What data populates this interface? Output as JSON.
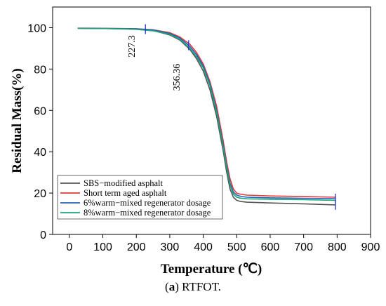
{
  "chart_data": {
    "type": "line",
    "title": "",
    "xlabel": "Temperature (℃)",
    "ylabel": "Residual Mass(%)",
    "xlim": [
      -50,
      900
    ],
    "ylim": [
      0,
      110
    ],
    "xticks": [
      0,
      100,
      200,
      300,
      400,
      500,
      600,
      700,
      800,
      900
    ],
    "yticks": [
      0,
      20,
      40,
      60,
      80,
      100
    ],
    "grid": false,
    "legend": "bottom-left",
    "series": [
      {
        "name": "SBS−modified asphalt",
        "color": "#555555",
        "x": [
          25,
          100,
          200,
          250,
          300,
          330,
          360,
          380,
          400,
          420,
          440,
          460,
          470,
          480,
          490,
          500,
          510,
          530,
          600,
          700,
          795
        ],
        "y": [
          99.7,
          99.6,
          99.3,
          98.7,
          96.5,
          94,
          89.5,
          85,
          79,
          70,
          57,
          40,
          30,
          22,
          18,
          16.5,
          16,
          15.6,
          15.2,
          14.8,
          14.3
        ]
      },
      {
        "name": "Short term aged asphalt",
        "color": "#e03c3c",
        "x": [
          25,
          100,
          200,
          250,
          300,
          330,
          360,
          380,
          400,
          420,
          440,
          460,
          470,
          480,
          490,
          500,
          510,
          530,
          600,
          700,
          795
        ],
        "y": [
          99.8,
          99.7,
          99.5,
          99,
          97.6,
          95.5,
          92,
          88,
          82.5,
          74,
          62,
          45,
          35,
          27,
          22,
          20,
          19.5,
          19,
          18.6,
          18.3,
          18
        ]
      },
      {
        "name": "6%warm−mixed regenerator dosage",
        "color": "#1f63b8",
        "x": [
          25,
          100,
          200,
          250,
          300,
          330,
          360,
          380,
          400,
          420,
          440,
          460,
          470,
          480,
          490,
          500,
          510,
          530,
          600,
          700,
          795
        ],
        "y": [
          99.7,
          99.6,
          99.4,
          98.9,
          97.2,
          95,
          91,
          87,
          81.5,
          73,
          60,
          43,
          33,
          25,
          20.5,
          19,
          18.5,
          18,
          17.7,
          17.5,
          17.3
        ]
      },
      {
        "name": "8%warm−mixed regenerator dosage",
        "color": "#1ba37a",
        "x": [
          25,
          100,
          200,
          250,
          300,
          330,
          360,
          380,
          400,
          420,
          440,
          460,
          470,
          480,
          490,
          500,
          510,
          530,
          600,
          700,
          795
        ],
        "y": [
          99.7,
          99.6,
          99.2,
          98.5,
          96.8,
          94.3,
          90,
          86,
          80.5,
          72,
          59,
          42,
          32,
          24,
          19.5,
          18,
          17.6,
          17.2,
          17,
          16.8,
          16.5
        ]
      }
    ],
    "markers": [
      {
        "x": 227.3,
        "y": 99.3,
        "color": "#2233cc"
      },
      {
        "x": 356.36,
        "y": 91.5,
        "color": "#2233cc"
      },
      {
        "x": 795,
        "y": 14.3,
        "color": "#2233cc"
      },
      {
        "x": 795,
        "y": 17.3,
        "color": "#2233cc"
      }
    ],
    "annotations": [
      {
        "text": "227.3",
        "x": 195,
        "y": 91
      },
      {
        "text": "356.36",
        "x": 330,
        "y": 76
      }
    ]
  },
  "caption": {
    "prefix": "(",
    "letter": "a",
    "suffix": ") RTFOT."
  }
}
